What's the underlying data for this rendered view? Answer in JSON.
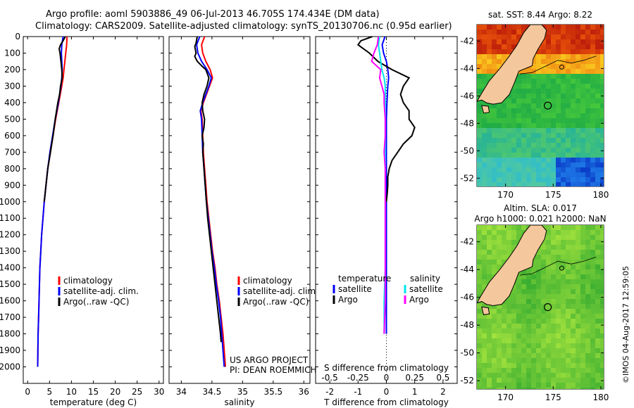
{
  "header": {
    "line1": "Argo profile: aoml 5903886_49 06-Jul-2013 46.705S 174.434E (DM data)",
    "line2": "Climatology: CARS2009. Satellite-adjusted climatology: synTS_20130706.nc (0.95d earlier)"
  },
  "colors": {
    "climatology": "#ff0000",
    "satellite": "#0000ff",
    "argo": "#000000",
    "salinity_satellite": "#00e5ee",
    "salinity_argo": "#ff00ff",
    "land": "#f5c79c"
  },
  "chart_data": [
    {
      "type": "line",
      "name": "temperature-profile",
      "xlabel": "temperature (deg C)",
      "ylabel": "",
      "xlim": [
        -1,
        31
      ],
      "ylim": [
        0,
        2100
      ],
      "y_reversed": true,
      "xticks": [
        0,
        5,
        10,
        15,
        20,
        25,
        30
      ],
      "yticks": [
        0,
        100,
        200,
        300,
        400,
        500,
        600,
        700,
        800,
        900,
        1000,
        1100,
        1200,
        1300,
        1400,
        1500,
        1600,
        1700,
        1800,
        1900,
        2000
      ],
      "legend": {
        "position": "lower-left",
        "entries": [
          "climatology",
          "satellite-adj. clim.",
          "Argo(..raw -QC)"
        ]
      },
      "series": [
        {
          "name": "climatology",
          "depth": [
            0,
            50,
            100,
            150,
            200,
            250,
            300,
            400,
            500,
            600,
            700,
            800,
            900,
            1000,
            1100,
            1200,
            1300,
            1400,
            1500,
            1600,
            1700,
            1800,
            1900,
            2000
          ],
          "values": [
            9.0,
            8.9,
            8.7,
            8.5,
            8.3,
            8.1,
            7.8,
            7.1,
            6.4,
            5.8,
            5.2,
            4.6,
            4.2,
            3.8,
            3.5,
            3.2,
            3.0,
            2.8,
            2.7,
            2.6,
            2.5,
            2.4,
            2.35,
            2.3
          ]
        },
        {
          "name": "satellite-adj. clim.",
          "depth": [
            0,
            50,
            100,
            150,
            200,
            250,
            300,
            400,
            500,
            600,
            700,
            800,
            900,
            1000,
            1100,
            1200,
            1300,
            1400,
            1500,
            1600,
            1700,
            1800,
            1900,
            2000
          ],
          "values": [
            8.1,
            7.8,
            7.7,
            7.8,
            7.9,
            7.8,
            7.6,
            7.0,
            6.3,
            5.7,
            5.1,
            4.6,
            4.2,
            3.8,
            3.5,
            3.2,
            3.0,
            2.8,
            2.7,
            2.6,
            2.5,
            2.4,
            2.35,
            2.3
          ]
        },
        {
          "name": "Argo(..raw -QC)",
          "depth": [
            0,
            25,
            50,
            75,
            100,
            150,
            200,
            250,
            300,
            350,
            400,
            500,
            600,
            700,
            800,
            900,
            1000
          ],
          "values": [
            8.6,
            8.1,
            7.5,
            7.2,
            7.4,
            7.6,
            7.8,
            7.9,
            7.5,
            7.3,
            6.9,
            6.3,
            5.8,
            5.2,
            4.6,
            4.2,
            3.8
          ]
        }
      ]
    },
    {
      "type": "line",
      "name": "salinity-profile",
      "xlabel": "salinity",
      "xlim": [
        33.8,
        36.1
      ],
      "ylim": [
        0,
        2100
      ],
      "y_reversed": true,
      "xticks": [
        34,
        34.5,
        35,
        35.5,
        36
      ],
      "xticklabels": [
        "34",
        "34.5",
        "35",
        "35.5",
        "36"
      ],
      "legend": {
        "position": "lower-left",
        "entries": [
          "climatology",
          "satellite-adj. clim.",
          "Argo(..raw -QC)"
        ]
      },
      "annotation": [
        "US ARGO PROJECT",
        "PI: DEAN ROEMMICH"
      ],
      "series": [
        {
          "name": "climatology",
          "depth": [
            0,
            50,
            100,
            150,
            200,
            250,
            300,
            400,
            450,
            500,
            600,
            700,
            800,
            900,
            1000,
            1100,
            1200,
            1300,
            1400,
            1500,
            1600,
            1700,
            1800,
            1900,
            2000
          ],
          "values": [
            34.38,
            34.33,
            34.35,
            34.4,
            34.47,
            34.51,
            34.46,
            34.36,
            34.32,
            34.34,
            34.35,
            34.36,
            34.38,
            34.4,
            34.42,
            34.45,
            34.48,
            34.51,
            34.55,
            34.58,
            34.62,
            34.65,
            34.68,
            34.7,
            34.72
          ]
        },
        {
          "name": "satellite-adj. clim.",
          "depth": [
            0,
            50,
            100,
            150,
            200,
            250,
            300,
            400,
            450,
            500,
            600,
            700,
            800,
            900,
            1000,
            1100,
            1200,
            1300,
            1400,
            1500,
            1600,
            1700,
            1800,
            1900,
            2000
          ],
          "values": [
            34.3,
            34.25,
            34.27,
            34.33,
            34.42,
            34.49,
            34.45,
            34.35,
            34.31,
            34.33,
            34.34,
            34.35,
            34.37,
            34.39,
            34.41,
            34.44,
            34.47,
            34.5,
            34.54,
            34.57,
            34.61,
            34.64,
            34.66,
            34.68,
            34.7
          ]
        },
        {
          "name": "Argo(..raw -QC)",
          "depth": [
            0,
            20,
            40,
            60,
            80,
            100,
            120,
            150,
            180,
            200,
            230,
            250,
            300,
            350,
            400,
            450,
            500,
            550,
            600,
            650,
            700,
            800,
            900,
            1000,
            1100,
            1200,
            1300,
            1400,
            1500,
            1600,
            1700,
            1800,
            1850
          ],
          "values": [
            34.26,
            34.25,
            34.24,
            34.22,
            34.23,
            34.24,
            34.22,
            34.26,
            34.34,
            34.4,
            34.43,
            34.45,
            34.42,
            34.37,
            34.34,
            34.35,
            34.38,
            34.37,
            34.34,
            34.36,
            34.35,
            34.37,
            34.39,
            34.41,
            34.43,
            34.46,
            34.49,
            34.52,
            34.55,
            34.58,
            34.61,
            34.64,
            34.65
          ]
        }
      ]
    },
    {
      "type": "line",
      "name": "difference-profile",
      "xlabel": "T difference from climatology",
      "xlabel2": "S difference from climatology",
      "xlim": [
        -2.5,
        2.5
      ],
      "ylim": [
        0,
        2100
      ],
      "y_reversed": true,
      "xticks": [
        -2,
        -1,
        0,
        1,
        2
      ],
      "xticks_s": [
        -0.5,
        -0.25,
        0,
        0.25,
        0.5
      ],
      "xticklabels_s": [
        "-0.5",
        "-0.25",
        "0",
        "0.25",
        "0.5"
      ],
      "legend": {
        "position": "lower-middle",
        "temperature_header": "temperature",
        "salinity_header": "salinity",
        "entries": [
          "satellite",
          "Argo",
          "satellite",
          "Argo"
        ]
      },
      "series": [
        {
          "name": "temperature satellite",
          "depth": [
            0,
            50,
            100,
            150,
            200,
            250,
            300,
            400,
            500,
            600,
            700,
            800,
            900,
            1000,
            1200,
            1400,
            1600,
            1800
          ],
          "values": [
            -0.05,
            -0.15,
            -0.1,
            0.0,
            0.05,
            0.08,
            0.05,
            0.02,
            0.0,
            0.0,
            0.0,
            0.0,
            0.0,
            0.0,
            0.0,
            0.0,
            0.0,
            0.0
          ]
        },
        {
          "name": "temperature Argo",
          "depth": [
            0,
            25,
            50,
            75,
            100,
            150,
            200,
            250,
            300,
            350,
            400,
            450,
            500,
            550,
            600,
            650,
            700,
            750,
            800,
            850,
            900,
            950,
            1000
          ],
          "values": [
            -0.5,
            -0.9,
            -1.0,
            -0.8,
            -0.6,
            -0.3,
            0.2,
            0.8,
            0.6,
            0.5,
            0.6,
            0.8,
            0.8,
            1.0,
            0.9,
            0.6,
            0.4,
            0.2,
            0.1,
            0.05,
            0.05,
            0.03,
            0.0
          ]
        },
        {
          "name": "salinity satellite",
          "depth": [
            0,
            50,
            100,
            150,
            200,
            250,
            300,
            400,
            500,
            600,
            700,
            800,
            900,
            1000,
            1200,
            1400,
            1600,
            1800
          ],
          "values": [
            -0.06,
            -0.07,
            -0.06,
            -0.05,
            -0.04,
            -0.02,
            -0.01,
            -0.01,
            -0.01,
            -0.01,
            -0.01,
            -0.01,
            -0.01,
            -0.01,
            -0.01,
            -0.01,
            -0.02,
            -0.02
          ]
        },
        {
          "name": "salinity Argo",
          "depth": [
            0,
            50,
            100,
            150,
            200,
            250,
            300,
            350,
            400,
            500,
            600,
            700,
            800,
            900,
            1000,
            1200,
            1400,
            1600,
            1800
          ],
          "values": [
            -0.07,
            -0.08,
            -0.11,
            -0.13,
            -0.05,
            -0.06,
            -0.04,
            -0.02,
            -0.02,
            -0.01,
            -0.01,
            -0.02,
            -0.01,
            -0.01,
            -0.01,
            -0.01,
            -0.01,
            -0.01,
            -0.02
          ]
        }
      ]
    },
    {
      "type": "heatmap",
      "name": "sst-map",
      "title": "sat. SST: 8.44  Argo: 8.22",
      "xlim": [
        167,
        180.3
      ],
      "ylim": [
        -52.6,
        -40.8
      ],
      "xticks": [
        170,
        175,
        180
      ],
      "yticks": [
        -42,
        -44,
        -46,
        -48,
        -50,
        -52
      ],
      "float_position": {
        "lon": 174.434,
        "lat": -46.705
      }
    },
    {
      "type": "heatmap",
      "name": "sla-map",
      "title": "Altim. SLA: 0.017",
      "subtitle": "Argo h1000: 0.021 h2000: NaN",
      "xlim": [
        167,
        180.3
      ],
      "ylim": [
        -52.6,
        -40.8
      ],
      "xticks": [
        170,
        175,
        180
      ],
      "yticks": [
        -42,
        -44,
        -46,
        -48,
        -50,
        -52
      ],
      "float_position": {
        "lon": 174.434,
        "lat": -46.705
      }
    }
  ],
  "footer": {
    "timestamp": "©IMOS 04-Aug-2017 12:59:05"
  }
}
